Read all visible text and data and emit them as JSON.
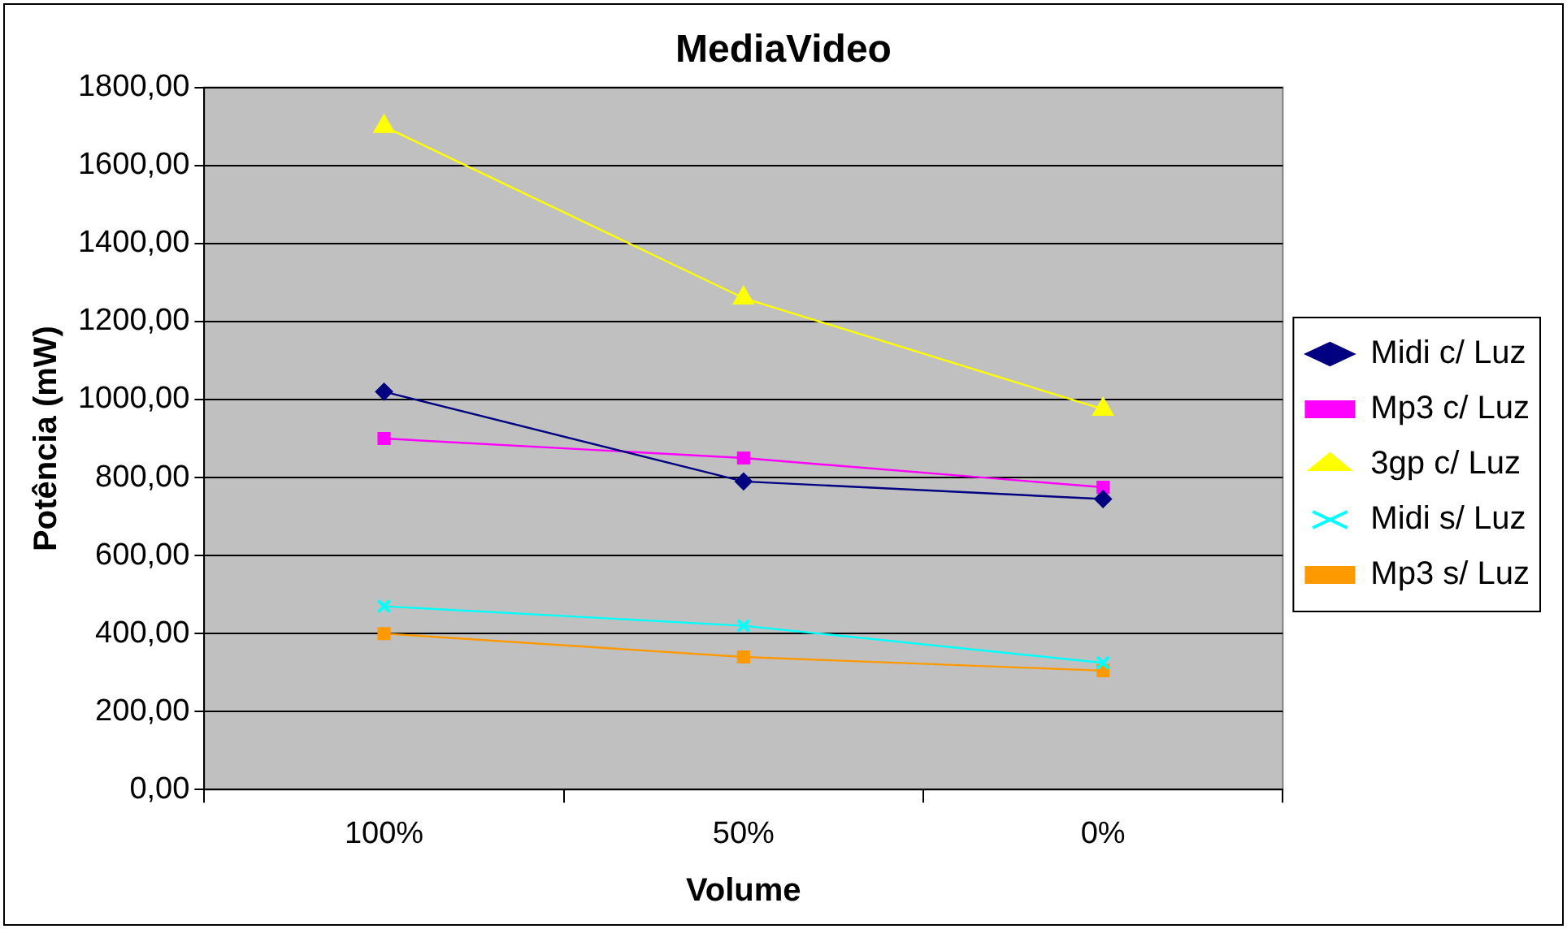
{
  "chart_data": {
    "type": "line",
    "title": "MediaVideo",
    "xlabel": "Volume",
    "ylabel": "Potência (mW)",
    "categories": [
      "100%",
      "50%",
      "0%"
    ],
    "series": [
      {
        "name": "Midi c/ Luz",
        "color": "#000080",
        "marker": "diamond",
        "values": [
          1020,
          790,
          745
        ]
      },
      {
        "name": "Mp3 c/ Luz",
        "color": "#ff00ff",
        "marker": "square",
        "values": [
          900,
          850,
          775
        ]
      },
      {
        "name": "3gp c/ Luz",
        "color": "#ffff00",
        "marker": "triangle",
        "values": [
          1700,
          1260,
          975
        ]
      },
      {
        "name": "Midi s/ Luz",
        "color": "#00ffff",
        "marker": "cross",
        "values": [
          470,
          420,
          325
        ]
      },
      {
        "name": "Mp3 s/ Luz",
        "color": "#ff9900",
        "marker": "square",
        "values": [
          400,
          340,
          305
        ]
      }
    ],
    "ylim": [
      0,
      1800
    ],
    "yticks": [
      {
        "value": 0,
        "label": "0,00"
      },
      {
        "value": 200,
        "label": "200,00"
      },
      {
        "value": 400,
        "label": "400,00"
      },
      {
        "value": 600,
        "label": "600,00"
      },
      {
        "value": 800,
        "label": "800,00"
      },
      {
        "value": 1000,
        "label": "1000,00"
      },
      {
        "value": 1200,
        "label": "1200,00"
      },
      {
        "value": 1400,
        "label": "1400,00"
      },
      {
        "value": 1600,
        "label": "1600,00"
      },
      {
        "value": 1800,
        "label": "1800,00"
      }
    ],
    "grid": "y",
    "legend": "right",
    "line_style": "solid"
  }
}
